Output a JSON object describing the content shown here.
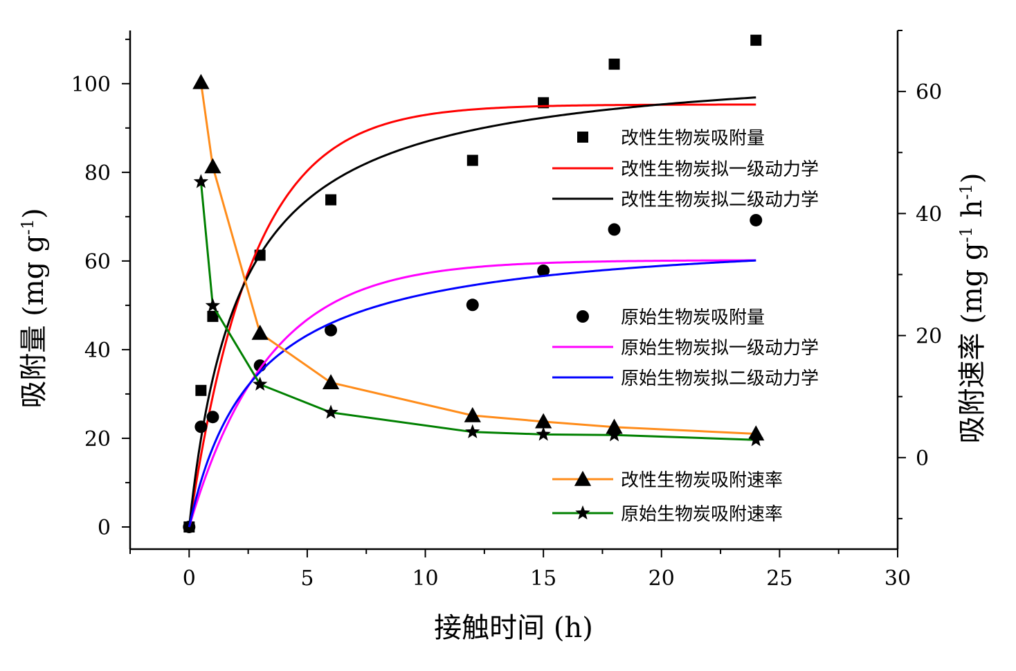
{
  "chart_data": {
    "type": "scatter",
    "xlabel": "接触时间 (h)",
    "ylabel_left": "吸附量 (mg g",
    "ylabel_left_sup": "-1",
    "ylabel_left_close": ")",
    "ylabel_right": "吸附速率 (mg g",
    "ylabel_right_sup1": "-1",
    "ylabel_right_mid": " h",
    "ylabel_right_sup2": "-1",
    "ylabel_right_close": ")",
    "xlim": [
      -2.5,
      30
    ],
    "ylim_left": [
      -5,
      112
    ],
    "ylim_right": [
      -15,
      70
    ],
    "x_ticks": [
      0,
      5,
      10,
      15,
      20,
      25,
      30
    ],
    "y_left_ticks": [
      0,
      20,
      40,
      60,
      80,
      100
    ],
    "y_right_ticks": [
      0,
      20,
      40,
      60
    ],
    "series": [
      {
        "name": "改性生物炭吸附量",
        "axis": "left",
        "kind": "markers",
        "marker": "square",
        "color": "#000000",
        "x": [
          0,
          0.5,
          1,
          3,
          6,
          12,
          15,
          18,
          24
        ],
        "y": [
          0,
          30.8,
          47.5,
          61.3,
          73.8,
          82.7,
          95.7,
          104.4,
          109.8
        ]
      },
      {
        "name": "改性生物炭拟一级动力学",
        "axis": "left",
        "kind": "curve",
        "color": "#ff0000",
        "model": "pfo",
        "qe": 95.3,
        "k": 0.37,
        "x_range": [
          0,
          24
        ]
      },
      {
        "name": "改性生物炭拟二级动力学",
        "axis": "left",
        "kind": "curve",
        "color": "#000000",
        "model": "pso",
        "qe": 105.6,
        "k": 0.00439,
        "x_range": [
          0,
          24
        ]
      },
      {
        "name": "原始生物炭吸附量",
        "axis": "left",
        "kind": "markers",
        "marker": "circle",
        "color": "#000000",
        "x": [
          0,
          0.5,
          1,
          3,
          6,
          12,
          15,
          18,
          24
        ],
        "y": [
          0,
          22.6,
          24.8,
          36.4,
          44.4,
          50.1,
          57.8,
          67.1,
          69.2
        ]
      },
      {
        "name": "原始生物炭拟一级动力学",
        "axis": "left",
        "kind": "curve",
        "color": "#ff00ff",
        "model": "pfo",
        "qe": 60.2,
        "k": 0.3,
        "x_range": [
          0,
          24
        ]
      },
      {
        "name": "原始生物炭拟二级动力学",
        "axis": "left",
        "kind": "curve",
        "color": "#0000ff",
        "model": "pso",
        "qe": 67.0,
        "k": 0.00543,
        "x_range": [
          0,
          24
        ]
      },
      {
        "name": "改性生物炭吸附速率",
        "axis": "right",
        "kind": "line-markers",
        "marker": "triangle",
        "color": "#ff8c1a",
        "x": [
          0.5,
          1,
          3,
          6,
          12,
          15,
          18,
          24
        ],
        "y": [
          61.5,
          47.7,
          20.4,
          12.3,
          6.9,
          5.9,
          5.0,
          3.9
        ]
      },
      {
        "name": "原始生物炭吸附速率",
        "axis": "right",
        "kind": "line-markers",
        "marker": "star",
        "color": "#008000",
        "x": [
          0.5,
          1,
          3,
          6,
          12,
          15,
          18,
          24
        ],
        "y": [
          45.2,
          24.9,
          12.0,
          7.4,
          4.2,
          3.8,
          3.7,
          2.9
        ]
      }
    ],
    "legend_groups": [
      {
        "position": "upper-right",
        "entries": [
          0,
          1,
          2
        ]
      },
      {
        "position": "middle-right",
        "entries": [
          3,
          4,
          5
        ]
      },
      {
        "position": "lower-right",
        "entries": [
          6,
          7
        ]
      }
    ]
  }
}
